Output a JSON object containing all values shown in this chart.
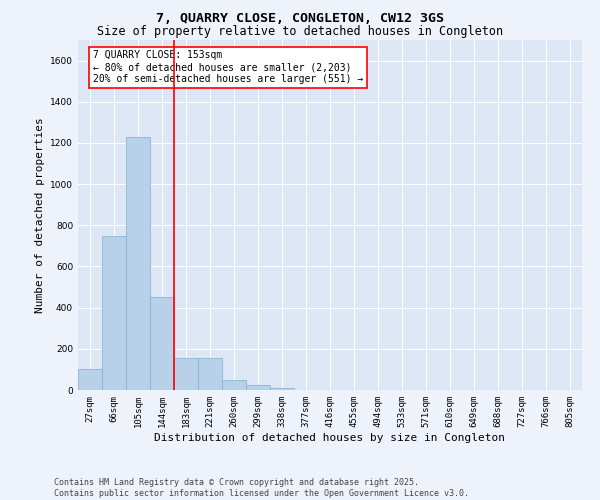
{
  "title": "7, QUARRY CLOSE, CONGLETON, CW12 3GS",
  "subtitle": "Size of property relative to detached houses in Congleton",
  "xlabel": "Distribution of detached houses by size in Congleton",
  "ylabel": "Number of detached properties",
  "categories": [
    "27sqm",
    "66sqm",
    "105sqm",
    "144sqm",
    "183sqm",
    "221sqm",
    "260sqm",
    "299sqm",
    "338sqm",
    "377sqm",
    "416sqm",
    "455sqm",
    "494sqm",
    "533sqm",
    "571sqm",
    "610sqm",
    "649sqm",
    "688sqm",
    "727sqm",
    "766sqm",
    "805sqm"
  ],
  "values": [
    100,
    750,
    1230,
    450,
    155,
    155,
    50,
    25,
    10,
    0,
    0,
    0,
    0,
    0,
    0,
    0,
    0,
    0,
    0,
    0,
    0
  ],
  "bar_color": "#b8d0e8",
  "bar_edge_color": "#7aafd4",
  "vline_color": "red",
  "vline_x_index": 3,
  "ylim": [
    0,
    1700
  ],
  "yticks": [
    0,
    200,
    400,
    600,
    800,
    1000,
    1200,
    1400,
    1600
  ],
  "annotation_title": "7 QUARRY CLOSE: 153sqm",
  "annotation_line1": "← 80% of detached houses are smaller (2,203)",
  "annotation_line2": "20% of semi-detached houses are larger (551) →",
  "annotation_box_color": "red",
  "footer_line1": "Contains HM Land Registry data © Crown copyright and database right 2025.",
  "footer_line2": "Contains public sector information licensed under the Open Government Licence v3.0.",
  "bg_color": "#edf2fb",
  "plot_bg_color": "#dce6f5",
  "grid_color": "white",
  "title_fontsize": 9.5,
  "subtitle_fontsize": 8.5,
  "axis_label_fontsize": 8,
  "tick_fontsize": 6.5,
  "annotation_fontsize": 7,
  "footer_fontsize": 6
}
